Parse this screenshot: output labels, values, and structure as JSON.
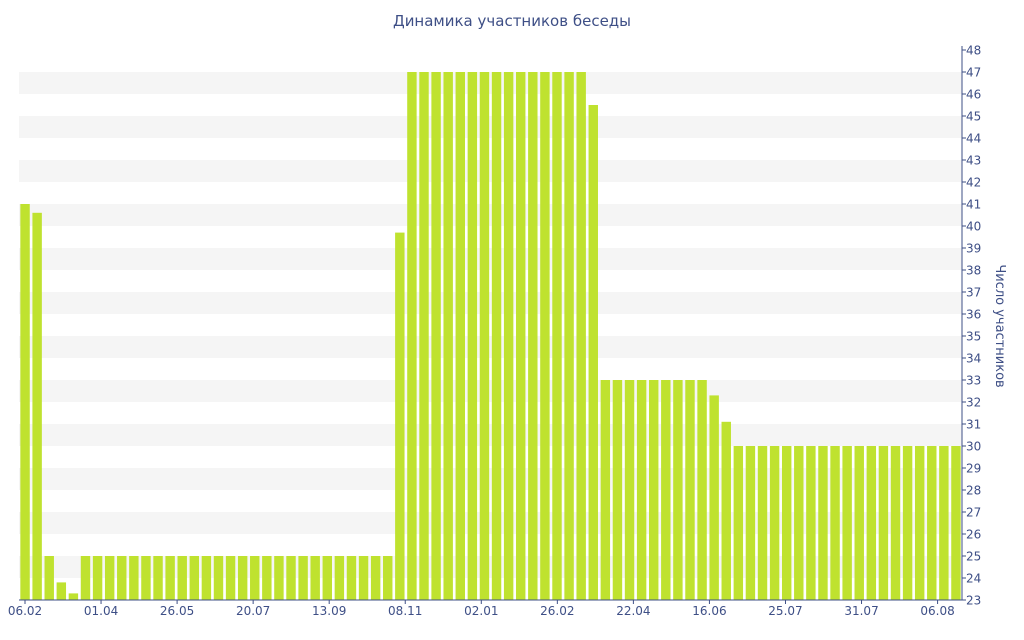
{
  "chart_data": {
    "type": "bar",
    "title": "Динамика участников беседы",
    "xlabel": "",
    "ylabel": "Число участников",
    "ylim": [
      23,
      48
    ],
    "y_axis_position": "right",
    "grid": "alternating-bands",
    "legend": "none",
    "x_tick_labels": [
      "06.02",
      "01.04",
      "26.05",
      "20.07",
      "13.09",
      "08.11",
      "02.01",
      "26.02",
      "22.04",
      "16.06",
      "25.07",
      "31.07",
      "06.08"
    ],
    "colors": {
      "bar": "#bfe22f",
      "text": "#3e4f86",
      "band": "#f5f5f5"
    },
    "values": [
      41,
      40.6,
      25,
      23.8,
      23.3,
      25,
      25,
      25,
      25,
      25,
      25,
      25,
      25,
      25,
      25,
      25,
      25,
      25,
      25,
      25,
      25,
      25,
      25,
      25,
      25,
      25,
      25,
      25,
      25,
      25,
      25,
      39.7,
      47,
      47,
      47,
      47,
      47,
      47,
      47,
      47,
      47,
      47,
      47,
      47,
      47,
      47,
      47,
      45.5,
      33,
      33,
      33,
      33,
      33,
      33,
      33,
      33,
      33,
      32.3,
      31.1,
      30,
      30,
      30,
      30,
      30,
      30,
      30,
      30,
      30,
      30,
      30,
      30,
      30,
      30,
      30,
      30,
      30,
      30,
      30
    ]
  }
}
